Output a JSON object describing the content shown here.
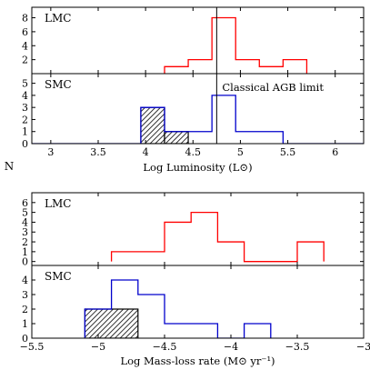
{
  "ylabel": "N",
  "chart_data": [
    {
      "type": "histogram",
      "xlabel": "Log Luminosity (L⊙)",
      "xlim": [
        2.8,
        6.3
      ],
      "xticks": [
        3,
        3.5,
        4,
        4.5,
        5,
        5.5,
        6
      ],
      "xtick_labels": [
        "3",
        "3.5",
        "4",
        "4.5",
        "5",
        "5.5",
        "6"
      ],
      "annotation": {
        "text": "Classical AGB limit",
        "x": 4.75
      },
      "panels": [
        {
          "label": "LMC",
          "ylim": [
            0,
            9.5
          ],
          "yticks": [
            2,
            4,
            6,
            8
          ],
          "ytick_labels": [
            "2",
            "4",
            "6",
            "8"
          ],
          "series": [
            {
              "color": "#ff0000",
              "bin_edges": [
                4.2,
                4.45,
                4.7,
                4.95,
                5.2,
                5.45,
                5.7
              ],
              "counts": [
                1,
                2,
                8,
                2,
                1,
                2
              ]
            }
          ]
        },
        {
          "label": "SMC",
          "ylim": [
            0,
            5.8
          ],
          "yticks": [
            0,
            1,
            2,
            3,
            4,
            5
          ],
          "ytick_labels": [
            "0",
            "1",
            "2",
            "3",
            "4",
            "5"
          ],
          "series": [
            {
              "color": "#0000cc",
              "bin_edges": [
                2.8,
                3.95,
                4.2,
                4.45,
                4.7,
                4.95,
                5.45,
                6.3
              ],
              "counts": [
                0,
                3,
                1,
                1,
                4,
                1,
                0
              ]
            },
            {
              "color": "#000000",
              "hatched": true,
              "bin_edges": [
                3.95,
                4.2,
                4.45
              ],
              "counts": [
                3,
                1
              ]
            }
          ]
        }
      ]
    },
    {
      "type": "histogram",
      "xlabel": "Log Mass-loss rate (M⊙ yr⁻¹)",
      "xlim": [
        -5.5,
        -3
      ],
      "xticks": [
        -5.5,
        -5,
        -4.5,
        -4,
        -3.5,
        -3
      ],
      "xtick_labels": [
        "−5.5",
        "−5",
        "−4.5",
        "−4",
        "−3.5",
        "−3"
      ],
      "panels": [
        {
          "label": "LMC",
          "ylim": [
            -0.4,
            7
          ],
          "yticks": [
            0,
            1,
            2,
            3,
            4,
            5,
            6
          ],
          "ytick_labels": [
            "0",
            "1",
            "2",
            "3",
            "4",
            "5",
            "6"
          ],
          "series": [
            {
              "color": "#ff0000",
              "bin_edges": [
                -4.9,
                -4.5,
                -4.3,
                -4.1,
                -3.9,
                -3.7,
                -3.5,
                -3.3
              ],
              "counts": [
                1,
                4,
                5,
                2,
                0,
                0,
                2
              ]
            }
          ]
        },
        {
          "label": "SMC",
          "ylim": [
            0,
            5
          ],
          "yticks": [
            0,
            1,
            2,
            3,
            4
          ],
          "ytick_labels": [
            "0",
            "1",
            "2",
            "3",
            "4"
          ],
          "series": [
            {
              "color": "#0000cc",
              "bin_edges": [
                -5.1,
                -4.9,
                -4.7,
                -4.5,
                -4.1,
                -3.9,
                -3.7
              ],
              "counts": [
                2,
                4,
                3,
                1,
                0,
                1
              ]
            },
            {
              "color": "#000000",
              "hatched": true,
              "bin_edges": [
                -5.1,
                -4.7
              ],
              "counts": [
                2
              ]
            }
          ]
        }
      ]
    }
  ]
}
